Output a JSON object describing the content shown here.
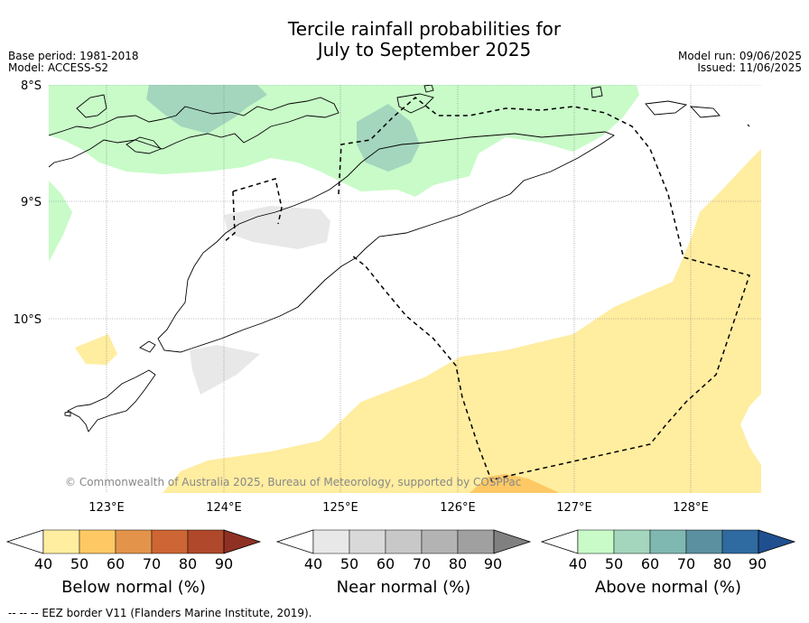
{
  "title_line1": "Tercile rainfall probabilities for",
  "title_line2": "July to September 2025",
  "base_period": "Base period: 1981-2018",
  "model": "Model: ACCESS-S2",
  "model_run": "Model run: 09/06/2025",
  "issued": "Issued: 11/06/2025",
  "lat_labels": [
    "8°S",
    "9°S",
    "10°S"
  ],
  "lon_labels": [
    "123°E",
    "124°E",
    "125°E",
    "126°E",
    "127°E",
    "128°E"
  ],
  "copyright": "© Commonwealth of Australia 2025, Bureau of Meteorology, supported by COSPPac",
  "colorbars": [
    {
      "label": "Below normal (%)",
      "ticks": [
        "40",
        "50",
        "60",
        "70",
        "80",
        "90"
      ],
      "colors": [
        "#ffeda0",
        "#fec965",
        "#e3944a",
        "#cd6634",
        "#b0482b",
        "#8f3024"
      ]
    },
    {
      "label": "Near normal (%)",
      "ticks": [
        "40",
        "50",
        "60",
        "70",
        "80",
        "90"
      ],
      "colors": [
        "#e8e8e8",
        "#d9d9d9",
        "#c8c8c8",
        "#b3b3b3",
        "#a0a0a0",
        "#808080"
      ]
    },
    {
      "label": "Above normal (%)",
      "ticks": [
        "40",
        "50",
        "60",
        "70",
        "80",
        "90"
      ],
      "colors": [
        "#c8fbc8",
        "#a3d6bd",
        "#7fb8b1",
        "#5a90a0",
        "#2f6aa0",
        "#1f4f8f"
      ]
    }
  ],
  "footnote": "--  --  -- EEZ border V11 (Flanders Marine Institute, 2019)."
}
